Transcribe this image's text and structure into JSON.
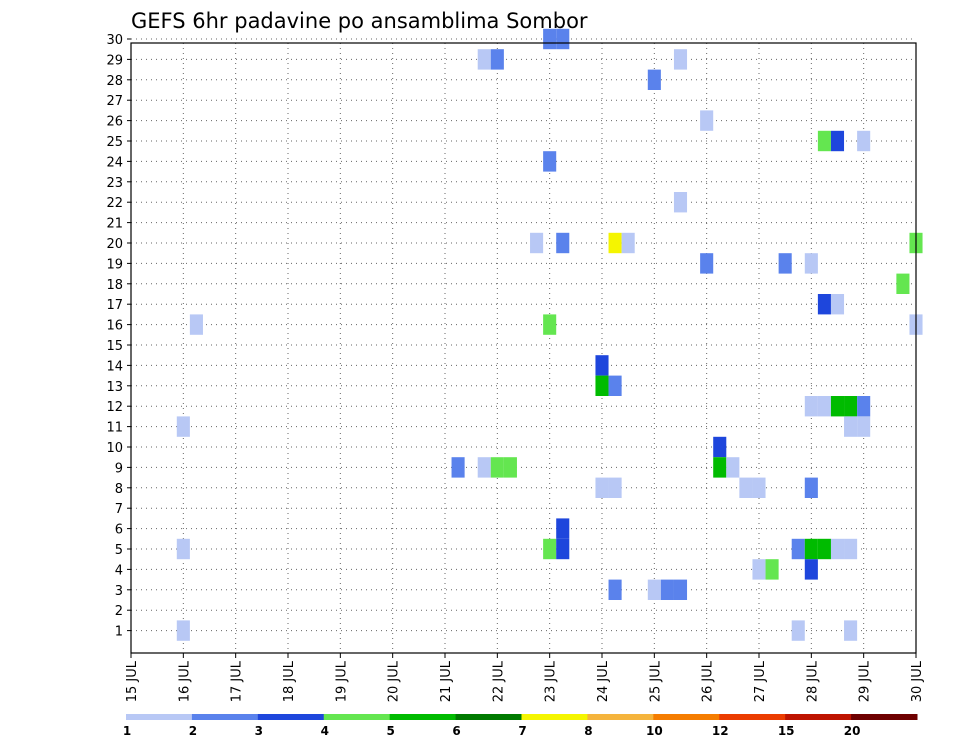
{
  "chart_data": {
    "type": "heatmap",
    "title": "GEFS 6hr padavine po ansamblima Sombor",
    "x_start": "15 JUL 00Z",
    "x_tick_labels": [
      "15 JUL",
      "16 JUL",
      "17 JUL",
      "18 JUL",
      "19 JUL",
      "20 JUL",
      "21 JUL",
      "22 JUL",
      "23 JUL",
      "24 JUL",
      "25 JUL",
      "26 JUL",
      "27 JUL",
      "28 JUL",
      "29 JUL",
      "30 JUL"
    ],
    "y_tick_labels": [
      "1",
      "2",
      "3",
      "4",
      "5",
      "6",
      "7",
      "8",
      "9",
      "10",
      "11",
      "12",
      "13",
      "14",
      "15",
      "16",
      "17",
      "18",
      "19",
      "20",
      "21",
      "22",
      "23",
      "24",
      "25",
      "26",
      "27",
      "28",
      "29",
      "30"
    ],
    "grid": true,
    "colorbar": {
      "labels": [
        "1",
        "2",
        "3",
        "4",
        "5",
        "6",
        "7",
        "8",
        "10",
        "12",
        "15",
        "20"
      ],
      "colors": [
        "#b8c8f5",
        "#5a82ec",
        "#1e46dc",
        "#64e650",
        "#00bb00",
        "#007a00",
        "#f5f500",
        "#f5b43c",
        "#f57d00",
        "#eb3c00",
        "#be1400",
        "#6e0000"
      ]
    },
    "cells": [
      {
        "member": 30,
        "day": 23.0,
        "level": 2
      },
      {
        "member": 30,
        "day": 23.25,
        "level": 2
      },
      {
        "member": 29,
        "day": 21.75,
        "level": 1
      },
      {
        "member": 29,
        "day": 22.0,
        "level": 2
      },
      {
        "member": 29,
        "day": 25.5,
        "level": 1
      },
      {
        "member": 28,
        "day": 25.0,
        "level": 2
      },
      {
        "member": 26,
        "day": 26.0,
        "level": 1
      },
      {
        "member": 25,
        "day": 28.25,
        "level": 4
      },
      {
        "member": 25,
        "day": 28.5,
        "level": 3
      },
      {
        "member": 25,
        "day": 29.0,
        "level": 1
      },
      {
        "member": 24,
        "day": 23.0,
        "level": 2
      },
      {
        "member": 22,
        "day": 25.5,
        "level": 1
      },
      {
        "member": 20,
        "day": 22.75,
        "level": 1
      },
      {
        "member": 20,
        "day": 23.25,
        "level": 2
      },
      {
        "member": 20,
        "day": 24.25,
        "level": 7
      },
      {
        "member": 20,
        "day": 24.5,
        "level": 1
      },
      {
        "member": 20,
        "day": 30.0,
        "level": 4
      },
      {
        "member": 19,
        "day": 26.0,
        "level": 2
      },
      {
        "member": 19,
        "day": 27.5,
        "level": 2
      },
      {
        "member": 19,
        "day": 28.0,
        "level": 1
      },
      {
        "member": 18,
        "day": 29.75,
        "level": 4
      },
      {
        "member": 17,
        "day": 28.25,
        "level": 3
      },
      {
        "member": 17,
        "day": 28.5,
        "level": 1
      },
      {
        "member": 16,
        "day": 16.25,
        "level": 1
      },
      {
        "member": 16,
        "day": 23.0,
        "level": 4
      },
      {
        "member": 16,
        "day": 30.0,
        "level": 1
      },
      {
        "member": 14,
        "day": 24.0,
        "level": 3
      },
      {
        "member": 13,
        "day": 24.0,
        "level": 5
      },
      {
        "member": 13,
        "day": 24.25,
        "level": 2
      },
      {
        "member": 12,
        "day": 28.0,
        "level": 1
      },
      {
        "member": 12,
        "day": 28.25,
        "level": 1
      },
      {
        "member": 12,
        "day": 28.5,
        "level": 5
      },
      {
        "member": 12,
        "day": 28.75,
        "level": 5
      },
      {
        "member": 12,
        "day": 29.0,
        "level": 2
      },
      {
        "member": 11,
        "day": 16.0,
        "level": 1
      },
      {
        "member": 11,
        "day": 28.75,
        "level": 1
      },
      {
        "member": 11,
        "day": 29.0,
        "level": 1
      },
      {
        "member": 10,
        "day": 26.25,
        "level": 3
      },
      {
        "member": 9,
        "day": 21.25,
        "level": 2
      },
      {
        "member": 9,
        "day": 21.75,
        "level": 1
      },
      {
        "member": 9,
        "day": 22.0,
        "level": 4
      },
      {
        "member": 9,
        "day": 22.25,
        "level": 4
      },
      {
        "member": 9,
        "day": 26.25,
        "level": 5
      },
      {
        "member": 9,
        "day": 26.5,
        "level": 1
      },
      {
        "member": 8,
        "day": 24.0,
        "level": 1
      },
      {
        "member": 8,
        "day": 24.25,
        "level": 1
      },
      {
        "member": 8,
        "day": 26.75,
        "level": 1
      },
      {
        "member": 8,
        "day": 27.0,
        "level": 1
      },
      {
        "member": 8,
        "day": 28.0,
        "level": 2
      },
      {
        "member": 6,
        "day": 23.25,
        "level": 3
      },
      {
        "member": 5,
        "day": 16.0,
        "level": 1
      },
      {
        "member": 5,
        "day": 23.0,
        "level": 4
      },
      {
        "member": 5,
        "day": 23.25,
        "level": 3
      },
      {
        "member": 5,
        "day": 27.75,
        "level": 2
      },
      {
        "member": 5,
        "day": 28.0,
        "level": 5
      },
      {
        "member": 5,
        "day": 28.25,
        "level": 5
      },
      {
        "member": 5,
        "day": 28.5,
        "level": 1
      },
      {
        "member": 5,
        "day": 28.75,
        "level": 1
      },
      {
        "member": 4,
        "day": 28.0,
        "level": 3
      },
      {
        "member": 4,
        "day": 27.0,
        "level": 1
      },
      {
        "member": 4,
        "day": 27.25,
        "level": 4
      },
      {
        "member": 3,
        "day": 24.25,
        "level": 2
      },
      {
        "member": 3,
        "day": 25.0,
        "level": 1
      },
      {
        "member": 3,
        "day": 25.25,
        "level": 2
      },
      {
        "member": 3,
        "day": 25.5,
        "level": 2
      },
      {
        "member": 1,
        "day": 16.0,
        "level": 1
      },
      {
        "member": 1,
        "day": 27.75,
        "level": 1
      },
      {
        "member": 1,
        "day": 28.75,
        "level": 1
      }
    ]
  }
}
